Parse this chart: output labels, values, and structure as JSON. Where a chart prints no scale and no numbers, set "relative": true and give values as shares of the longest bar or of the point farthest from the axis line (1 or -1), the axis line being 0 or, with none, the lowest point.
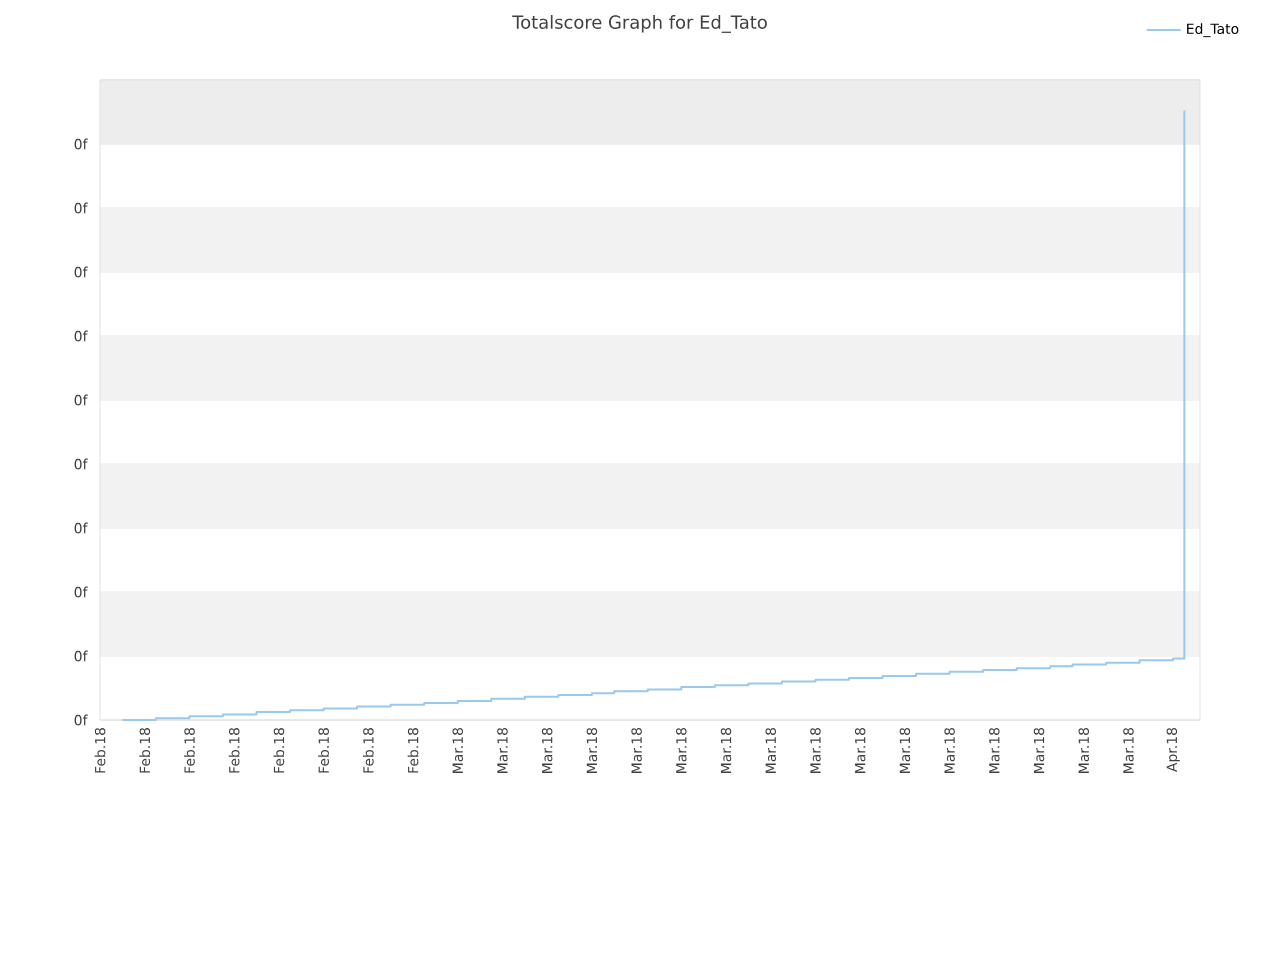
{
  "chart_data": {
    "type": "step",
    "title": "Totalscore Graph for Ed_Tato",
    "relative": true,
    "categories": [
      "Feb.18",
      null,
      null,
      null,
      "Feb.18",
      null,
      null,
      null,
      "Feb.18",
      null,
      null,
      null,
      "Feb.18",
      null,
      null,
      null,
      "Feb.18",
      null,
      null,
      null,
      "Feb.18",
      null,
      null,
      null,
      "Feb.18",
      null,
      null,
      null,
      "Feb.18",
      null,
      null,
      null,
      "Mar.18",
      null,
      null,
      null,
      "Mar.18",
      null,
      null,
      null,
      "Mar.18",
      null,
      null,
      null,
      "Mar.18",
      null,
      null,
      null,
      "Mar.18",
      null,
      null,
      null,
      "Mar.18",
      null,
      null,
      null,
      "Mar.18",
      null,
      null,
      null,
      "Mar.18",
      null,
      null,
      null,
      "Mar.18",
      null,
      null,
      null,
      "Mar.18",
      null,
      null,
      null,
      "Mar.18",
      null,
      null,
      null,
      "Mar.18",
      null,
      null,
      null,
      "Mar.18",
      null,
      null,
      null,
      "Mar.18",
      null,
      null,
      null,
      "Mar.18",
      null,
      null,
      null,
      "Mar.18",
      null,
      null,
      null,
      "Apr.18",
      null
    ],
    "annotations": [
      "0f",
      "0f",
      "0f",
      "0f",
      "0f",
      "0f",
      "0f",
      "0f",
      "0f",
      "0f"
    ],
    "bands": [
      {
        "axis": "y",
        "from": 0.105,
        "to": 0.21,
        "color": "#f2f2f2"
      },
      {
        "axis": "y",
        "from": 0.315,
        "to": 0.42,
        "color": "#f2f2f2"
      },
      {
        "axis": "y",
        "from": 0.525,
        "to": 0.63,
        "color": "#f2f2f2"
      },
      {
        "axis": "y",
        "from": 0.735,
        "to": 0.84,
        "color": "#f2f2f2"
      },
      {
        "axis": "y",
        "from": 0.944,
        "to": 1.049,
        "color": "#ededed"
      }
    ],
    "grid": "y",
    "legend": "top right",
    "marker": "none",
    "line_style": "solid",
    "series": [
      {
        "name": "Ed_Tato",
        "color": "#99c8f0",
        "values": [
          null,
          null,
          0,
          0,
          0,
          0.003,
          0.003,
          0.003,
          0.006,
          0.006,
          0.006,
          0.009,
          0.009,
          0.009,
          0.013,
          0.013,
          0.013,
          0.016,
          0.016,
          0.016,
          0.019,
          0.019,
          0.019,
          0.022,
          0.022,
          0.022,
          0.025,
          0.025,
          0.025,
          0.028,
          0.028,
          0.028,
          0.031,
          0.031,
          0.031,
          0.035,
          0.035,
          0.035,
          0.038,
          0.038,
          0.038,
          0.041,
          0.041,
          0.041,
          0.044,
          0.044,
          0.047,
          0.047,
          0.047,
          0.05,
          0.05,
          0.05,
          0.054,
          0.054,
          0.054,
          0.057,
          0.057,
          0.057,
          0.06,
          0.06,
          0.06,
          0.063,
          0.063,
          0.063,
          0.066,
          0.066,
          0.066,
          0.069,
          0.069,
          0.069,
          0.072,
          0.072,
          0.072,
          0.076,
          0.076,
          0.076,
          0.079,
          0.079,
          0.079,
          0.082,
          0.082,
          0.082,
          0.085,
          0.085,
          0.085,
          0.088,
          0.088,
          0.091,
          0.091,
          0.091,
          0.094,
          0.094,
          0.094,
          0.098,
          0.098,
          0.098,
          0.101,
          1
        ]
      }
    ]
  }
}
